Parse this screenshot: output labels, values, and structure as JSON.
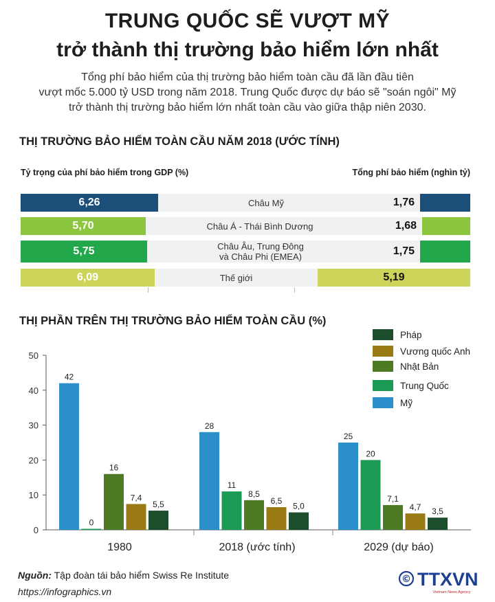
{
  "title_line1": "TRUNG QUỐC SẼ VƯỢT MỸ",
  "title_line2": "trở thành thị trường bảo hiểm lớn nhất",
  "intro_line1": "Tổng phí bảo hiểm của thị trường bảo hiểm toàn cầu đã lần đầu tiên",
  "intro_line2": "vượt mốc 5.000 tỷ USD trong năm 2018. Trung Quốc được dự báo sẽ \"soán ngôi\" Mỹ",
  "intro_line3": "trở thành thị trường bảo hiểm lớn nhất toàn cầu vào giữa thập niên 2030.",
  "section1_title": "THỊ TRƯỜNG BẢO HIỂM TOÀN CẦU NĂM 2018 (ƯỚC TÍNH)",
  "section2_title": "THỊ PHẦN TRÊN THỊ TRƯỜNG BẢO HIỂM TOÀN CẦU (%)",
  "chart_data": [
    {
      "type": "bar",
      "title": "THỊ TRƯỜNG BẢO HIỂM TOÀN CẦU NĂM 2018 (ƯỚC TÍNH)",
      "left_label": "Tỷ trọng của phí bảo hiểm trong GDP (%)",
      "right_label": "Tổng phí bảo hiểm (nghìn tỷ)",
      "rows": [
        {
          "region": [
            "Châu Mỹ"
          ],
          "gdp_share": "6,26",
          "gdp_value": 6.26,
          "premium": "1,76",
          "premium_value": 1.76,
          "color": "#1b4f7a"
        },
        {
          "region": [
            "Châu Á - Thái Bình Dương"
          ],
          "gdp_share": "5,70",
          "gdp_value": 5.7,
          "premium": "1,68",
          "premium_value": 1.68,
          "color": "#8cc63f"
        },
        {
          "region": [
            "Châu Âu, Trung Đông",
            "và Châu Phi (EMEA)"
          ],
          "gdp_share": "5,75",
          "gdp_value": 5.75,
          "premium": "1,75",
          "premium_value": 1.75,
          "color": "#22a84a"
        },
        {
          "region": [
            "Thế giới"
          ],
          "gdp_share": "6,09",
          "gdp_value": 6.09,
          "premium": "5,19",
          "premium_value": 5.19,
          "color": "#cdd45a"
        }
      ]
    },
    {
      "type": "bar",
      "title": "THỊ PHẦN TRÊN THỊ TRƯỜNG BẢO HIỂM TOÀN CẦU (%)",
      "categories": [
        "1980",
        "2018 (ước tính)",
        "2029 (dự báo)"
      ],
      "ylim": [
        0,
        50
      ],
      "yticks": [
        "0",
        "10",
        "20",
        "30",
        "40",
        "50"
      ],
      "legend_position": "top-right",
      "legend_order": [
        "Pháp",
        "Vương quốc Anh",
        "Nhật Bản",
        "Trung Quốc",
        "Mỹ"
      ],
      "series": [
        {
          "name": "Mỹ",
          "color": "#2a8fcb",
          "values": [
            42,
            28,
            25
          ],
          "labels": [
            "42",
            "28",
            "25"
          ]
        },
        {
          "name": "Trung Quốc",
          "color": "#1a9a55",
          "values": [
            0,
            11,
            20
          ],
          "labels": [
            "0",
            "11",
            "20"
          ]
        },
        {
          "name": "Nhật Bản",
          "color": "#4e7a26",
          "values": [
            16,
            8.5,
            7.1
          ],
          "labels": [
            "16",
            "8,5",
            "7,1"
          ]
        },
        {
          "name": "Vương quốc Anh",
          "color": "#9a7a14",
          "values": [
            7.4,
            6.5,
            4.7
          ],
          "labels": [
            "7,4",
            "6,5",
            "4,7"
          ]
        },
        {
          "name": "Pháp",
          "color": "#1c4d2c",
          "values": [
            5.5,
            5.0,
            3.5
          ],
          "labels": [
            "5,5",
            "5,0",
            "3,5"
          ]
        }
      ]
    }
  ],
  "source_label": "Nguồn:",
  "source_text": " Tập đoàn tái bảo hiểm Swiss Re Institute",
  "website": "https://infographics.vn",
  "logo": {
    "symbol": "©",
    "text": "TTXVN",
    "sub": "Vietnam News Agency",
    "color": "#1d3f8f"
  }
}
